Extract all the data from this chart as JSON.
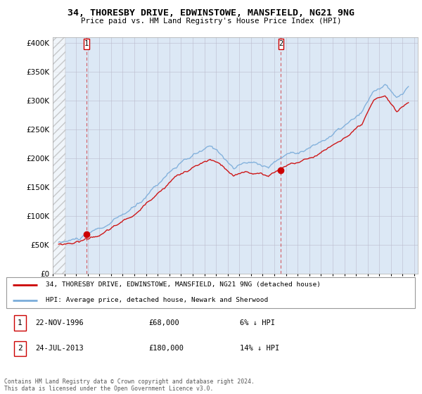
{
  "title": "34, THORESBY DRIVE, EDWINSTOWE, MANSFIELD, NG21 9NG",
  "subtitle": "Price paid vs. HM Land Registry's House Price Index (HPI)",
  "legend_line1": "34, THORESBY DRIVE, EDWINSTOWE, MANSFIELD, NG21 9NG (detached house)",
  "legend_line2": "HPI: Average price, detached house, Newark and Sherwood",
  "annotation1_date": "22-NOV-1996",
  "annotation1_price": "£68,000",
  "annotation1_hpi": "6% ↓ HPI",
  "annotation2_date": "24-JUL-2013",
  "annotation2_price": "£180,000",
  "annotation2_hpi": "14% ↓ HPI",
  "footer": "Contains HM Land Registry data © Crown copyright and database right 2024.\nThis data is licensed under the Open Government Licence v3.0.",
  "price_color": "#cc0000",
  "hpi_color": "#7aacda",
  "bg_color": "#dce8f5",
  "ylim": [
    0,
    410000
  ],
  "yticks": [
    0,
    50000,
    100000,
    150000,
    200000,
    250000,
    300000,
    350000,
    400000
  ],
  "sale1_x": 1996.9,
  "sale1_y": 68000,
  "sale2_x": 2013.55,
  "sale2_y": 180000,
  "xlim_start": 1994.0,
  "xlim_end": 2025.3
}
